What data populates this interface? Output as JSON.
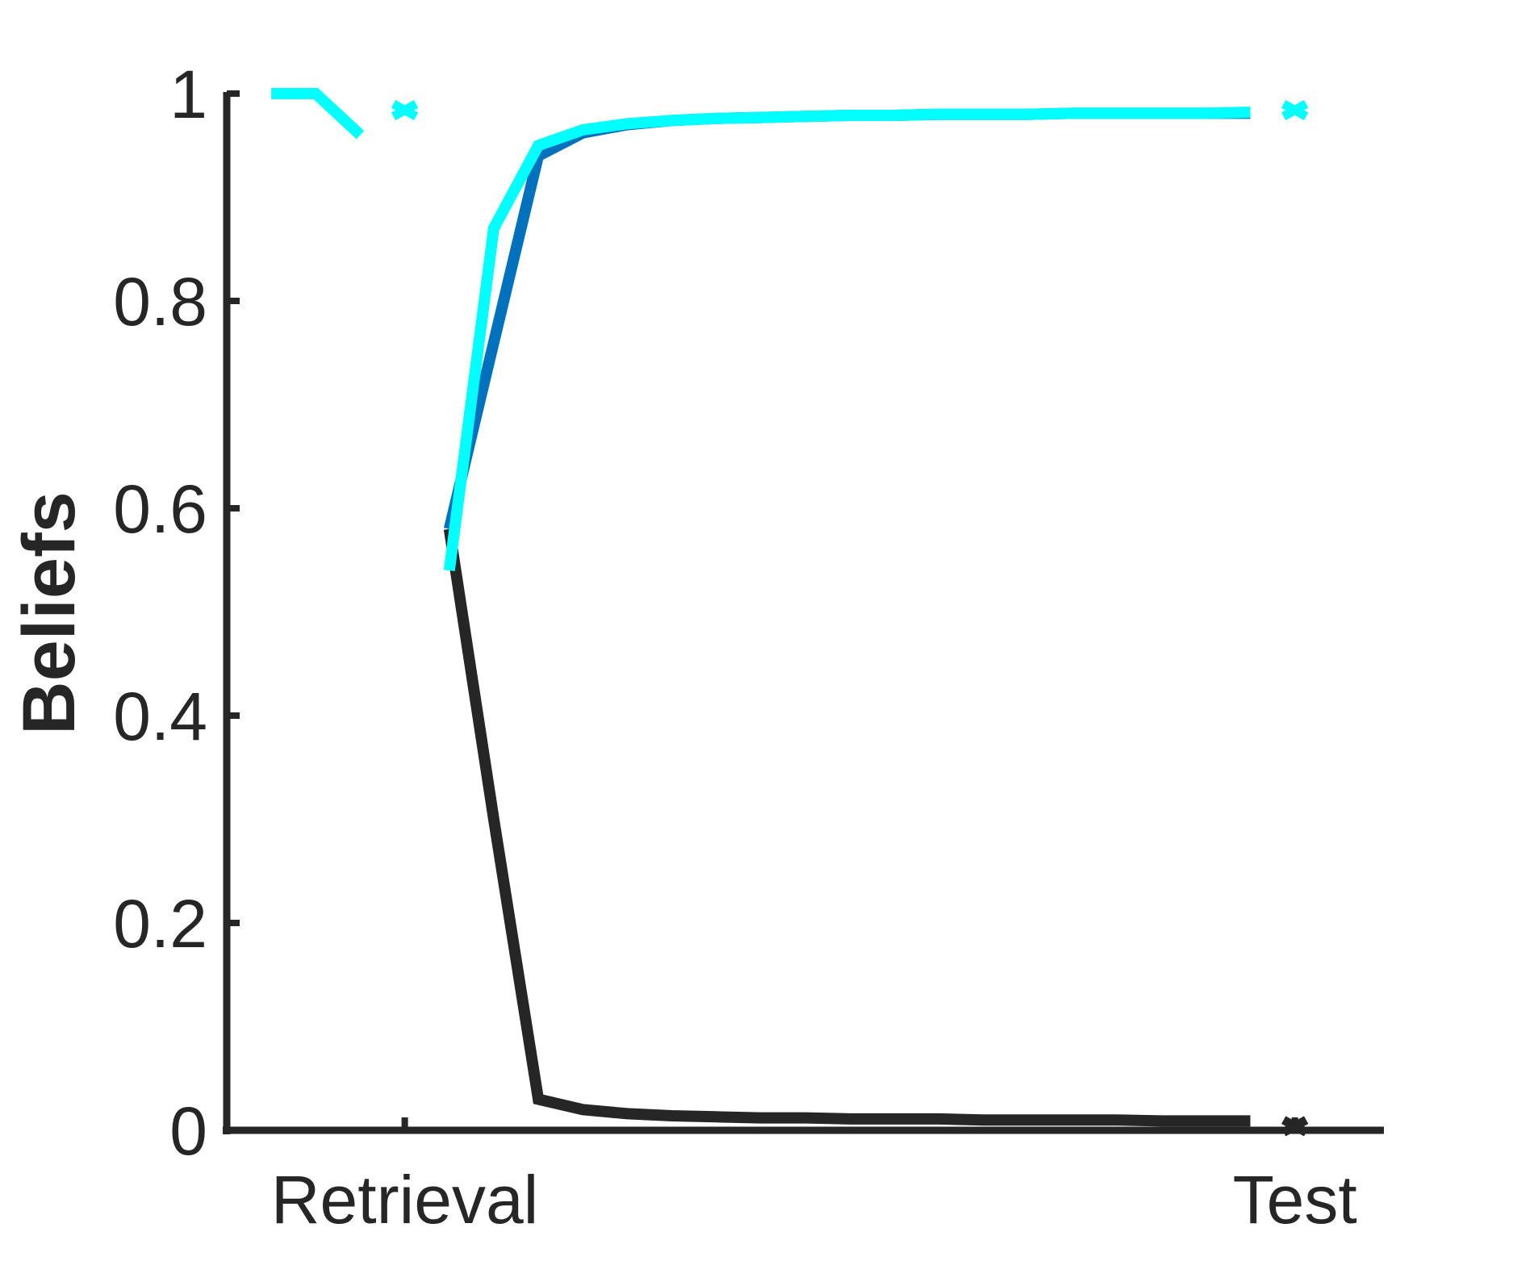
{
  "chart_data": {
    "type": "line",
    "title": "",
    "xlabel": "",
    "ylabel": "Beliefs",
    "xlim": [
      0,
      26
    ],
    "ylim": [
      0,
      1
    ],
    "y_ticks": [
      0,
      0.2,
      0.4,
      0.6,
      0.8,
      1
    ],
    "y_tick_labels": [
      "0",
      "0.2",
      "0.4",
      "0.6",
      "0.8",
      "1"
    ],
    "x_ticks": [
      4,
      24
    ],
    "x_tick_labels": [
      "Retrieval",
      "Test"
    ],
    "grid": false,
    "legend": "none",
    "series": [
      {
        "color": "#262626",
        "segments": [
          {
            "x": [
              5,
              6,
              7,
              8,
              9,
              10,
              11,
              12,
              13,
              14,
              15,
              16,
              17,
              18,
              19,
              20,
              21,
              22,
              23
            ],
            "y": [
              0.58,
              0.3,
              0.03,
              0.02,
              0.016,
              0.014,
              0.013,
              0.012,
              0.012,
              0.011,
              0.011,
              0.011,
              0.01,
              0.01,
              0.01,
              0.01,
              0.009,
              0.009,
              0.009
            ]
          }
        ],
        "markers": [
          {
            "x": 24,
            "y": 0.004
          }
        ]
      },
      {
        "color": "#0072BD",
        "segments": [
          {
            "x": [
              5,
              6,
              7,
              8,
              9,
              10,
              11,
              12,
              13,
              14,
              15,
              16,
              17,
              18,
              19,
              20,
              21,
              22,
              23
            ],
            "y": [
              0.58,
              0.76,
              0.94,
              0.962,
              0.97,
              0.974,
              0.976,
              0.977,
              0.978,
              0.979,
              0.979,
              0.98,
              0.98,
              0.98,
              0.981,
              0.981,
              0.981,
              0.981,
              0.981
            ]
          }
        ],
        "markers": []
      },
      {
        "color": "#00FFFF",
        "segments": [
          {
            "x": [
              1,
              2,
              3
            ],
            "y": [
              1.0,
              1.0,
              0.96
            ]
          },
          {
            "x": [
              5,
              6,
              7,
              8,
              9,
              10,
              11,
              12,
              13,
              14,
              15,
              16,
              17,
              18,
              19,
              20,
              21,
              22,
              23
            ],
            "y": [
              0.54,
              0.87,
              0.95,
              0.965,
              0.971,
              0.974,
              0.976,
              0.977,
              0.978,
              0.979,
              0.979,
              0.98,
              0.98,
              0.98,
              0.981,
              0.981,
              0.981,
              0.981,
              0.982
            ]
          }
        ],
        "markers": [
          {
            "x": 4,
            "y": 0.984
          },
          {
            "x": 24,
            "y": 0.984
          }
        ]
      }
    ]
  }
}
